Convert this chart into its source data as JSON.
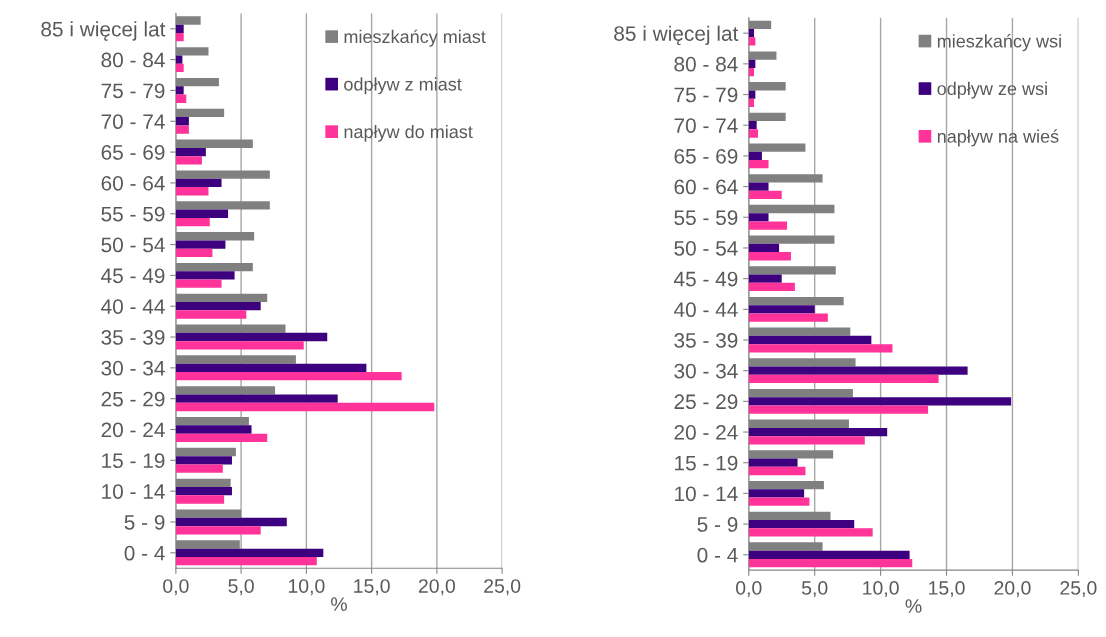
{
  "chart_data": [
    {
      "type": "bar",
      "orientation": "horizontal",
      "xlabel": "%",
      "categories": [
        "85 i więcej lat",
        "80 - 84",
        "75 - 79",
        "70 - 74",
        "65 - 69",
        "60 - 64",
        "55 - 59",
        "50 - 54",
        "45 - 49",
        "40 - 44",
        "35 - 39",
        "30 - 34",
        "25 - 29",
        "20 - 24",
        "15 - 19",
        "10 - 14",
        "5 - 9",
        "0 - 4"
      ],
      "series": [
        {
          "name": "mieszkańcy miast",
          "color": "#808080",
          "values": [
            1.9,
            2.5,
            3.3,
            3.7,
            5.9,
            7.2,
            7.2,
            6.0,
            5.9,
            7.0,
            8.4,
            9.2,
            7.6,
            5.6,
            4.6,
            4.2,
            5.0,
            4.9
          ]
        },
        {
          "name": "odpływ z miast",
          "color": "#3d007f",
          "values": [
            0.6,
            0.5,
            0.6,
            1.0,
            2.3,
            3.5,
            4.0,
            3.8,
            4.5,
            6.5,
            11.6,
            14.6,
            12.4,
            5.8,
            4.3,
            4.3,
            8.5,
            11.3
          ]
        },
        {
          "name": "napływ do miast",
          "color": "#ff3399",
          "values": [
            0.6,
            0.6,
            0.8,
            1.0,
            2.0,
            2.5,
            2.6,
            2.8,
            3.5,
            5.4,
            9.8,
            17.3,
            19.8,
            7.0,
            3.6,
            3.7,
            6.5,
            10.8
          ]
        }
      ],
      "xlim": [
        0,
        25
      ],
      "xticks": [
        {
          "value": 0,
          "label": "0,0"
        },
        {
          "value": 5,
          "label": "5,0"
        },
        {
          "value": 10,
          "label": "10,0"
        },
        {
          "value": 15,
          "label": "15,0"
        },
        {
          "value": 20,
          "label": "20,0"
        },
        {
          "value": 25,
          "label": "25,0"
        }
      ],
      "grid": "x",
      "legend": "top right"
    },
    {
      "type": "bar",
      "orientation": "horizontal",
      "xlabel": "%",
      "categories": [
        "85 i więcej lat",
        "80 - 84",
        "75 - 79",
        "70 - 74",
        "65 - 69",
        "60 - 64",
        "55 - 59",
        "50 - 54",
        "45 - 49",
        "40 - 44",
        "35 - 39",
        "30 - 34",
        "25 - 29",
        "20 - 24",
        "15 - 19",
        "10 - 14",
        "5 - 9",
        "0 - 4"
      ],
      "series": [
        {
          "name": "mieszkańcy wsi",
          "color": "#808080",
          "values": [
            1.7,
            2.1,
            2.8,
            2.8,
            4.3,
            5.6,
            6.5,
            6.5,
            6.6,
            7.2,
            7.7,
            8.1,
            7.9,
            7.6,
            6.4,
            5.7,
            6.2,
            5.6
          ]
        },
        {
          "name": "odpływ ze wsi",
          "color": "#3d007f",
          "values": [
            0.4,
            0.5,
            0.5,
            0.6,
            1.0,
            1.5,
            1.5,
            2.3,
            2.5,
            5.0,
            9.3,
            16.6,
            19.9,
            10.5,
            3.7,
            4.2,
            8.0,
            12.2
          ]
        },
        {
          "name": "napływ na wieś",
          "color": "#ff3399",
          "values": [
            0.5,
            0.4,
            0.4,
            0.7,
            1.5,
            2.5,
            2.9,
            3.2,
            3.5,
            6.0,
            10.9,
            14.4,
            13.6,
            8.8,
            4.3,
            4.6,
            9.4,
            12.4
          ]
        }
      ],
      "xlim": [
        0,
        25
      ],
      "xticks": [
        {
          "value": 0,
          "label": "0,0"
        },
        {
          "value": 5,
          "label": "5,0"
        },
        {
          "value": 10,
          "label": "10,0"
        },
        {
          "value": 15,
          "label": "15,0"
        },
        {
          "value": 20,
          "label": "20,0"
        },
        {
          "value": 25,
          "label": "25,0"
        }
      ],
      "grid": "x",
      "legend": "top right"
    }
  ]
}
